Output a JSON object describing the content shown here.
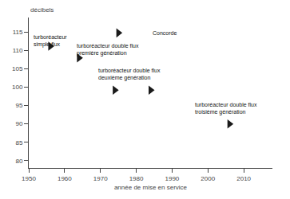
{
  "chart_data": {
    "type": "scatter",
    "xlabel": "année de mise en service",
    "ylabel": "décibels",
    "x": [
      1956,
      1964,
      1974,
      1984,
      2006,
      1975
    ],
    "values": [
      111.2,
      108.0,
      99.2,
      99.2,
      90.0,
      114.8
    ],
    "color": "#1a1a1a",
    "marker": "triangle-right",
    "xlim": [
      1950,
      2018
    ],
    "ylim": [
      78,
      119
    ],
    "xticks": [
      1950,
      1960,
      1970,
      1980,
      1990,
      2000,
      2010
    ],
    "yticks": [
      80,
      85,
      90,
      95,
      100,
      105,
      110,
      115
    ],
    "grid": false,
    "annotations": [
      {
        "text": "turboréacteur\nsimple flux",
        "x": 1951,
        "y": 114.8
      },
      {
        "text": "turboréacteur double flux\npremière génération",
        "x": 1963,
        "y": 112.5
      },
      {
        "text": "turboréacteur double flux\ndeuxième génération",
        "x": 1969,
        "y": 105.8
      },
      {
        "text": "Concorde",
        "x": 1984,
        "y": 116.0
      },
      {
        "text": "turboréacteur double flux\ntroisième génération",
        "x": 1996,
        "y": 96.5
      }
    ]
  }
}
